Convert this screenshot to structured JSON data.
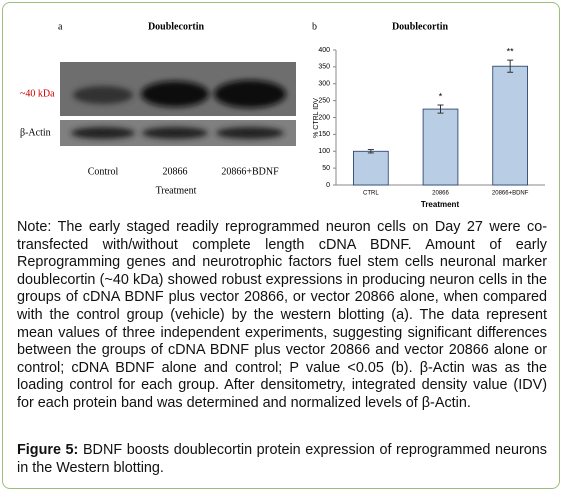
{
  "panel_a": {
    "label": "a",
    "title": "Doublecortin",
    "rows": [
      "~40 kDa",
      "β-Actin"
    ],
    "lanes": [
      "Control",
      "20866",
      "20866+BDNF"
    ],
    "xlabel": "Treatment"
  },
  "chart_data": {
    "type": "bar",
    "panel": "b",
    "title": "Doublecortin",
    "ylabel": "% CTRL IDV",
    "xlabel": "Treatment",
    "categories": [
      "CTRL",
      "20866",
      "20866+BDNF"
    ],
    "values": [
      100,
      225,
      352
    ],
    "errors": [
      5,
      12,
      18
    ],
    "color": "#b9cde5",
    "edge_color": "#1f3864",
    "annotations": [
      {
        "x": "20866",
        "text": "*"
      },
      {
        "x": "20866+BDNF",
        "text": "**"
      }
    ],
    "ylim": [
      0,
      400
    ],
    "yticks": [
      0,
      50,
      100,
      150,
      200,
      250,
      300,
      350,
      400
    ],
    "grid": false
  },
  "caption": {
    "note": "Note: The early staged readily reprogrammed neuron cells on Day 27 were co-transfected with/without complete length cDNA BDNF. Amount of early Reprogramming genes and neurotrophic factors fuel stem cells neuronal marker doublecortin (~40 kDa) showed robust expressions in producing neuron cells in the groups of cDNA BDNF plus vector 20866, or vector 20866 alone, when compared with the control group (vehicle) by the western blotting (a). The data represent mean values of three independent experiments, suggesting significant differences between the groups of cDNA BDNF plus vector 20866 and vector 20866 alone or control; cDNA BDNF alone and control; P value <0.05 (b). β-Actin was as the loading control for each group. After densitometry, integrated density value (IDV) for each protein band was determined and normalized levels of β-Actin.",
    "label": "Figure 5:",
    "text": "BDNF boosts doublecortin protein expression of reprogrammed neurons in the Western blotting."
  }
}
